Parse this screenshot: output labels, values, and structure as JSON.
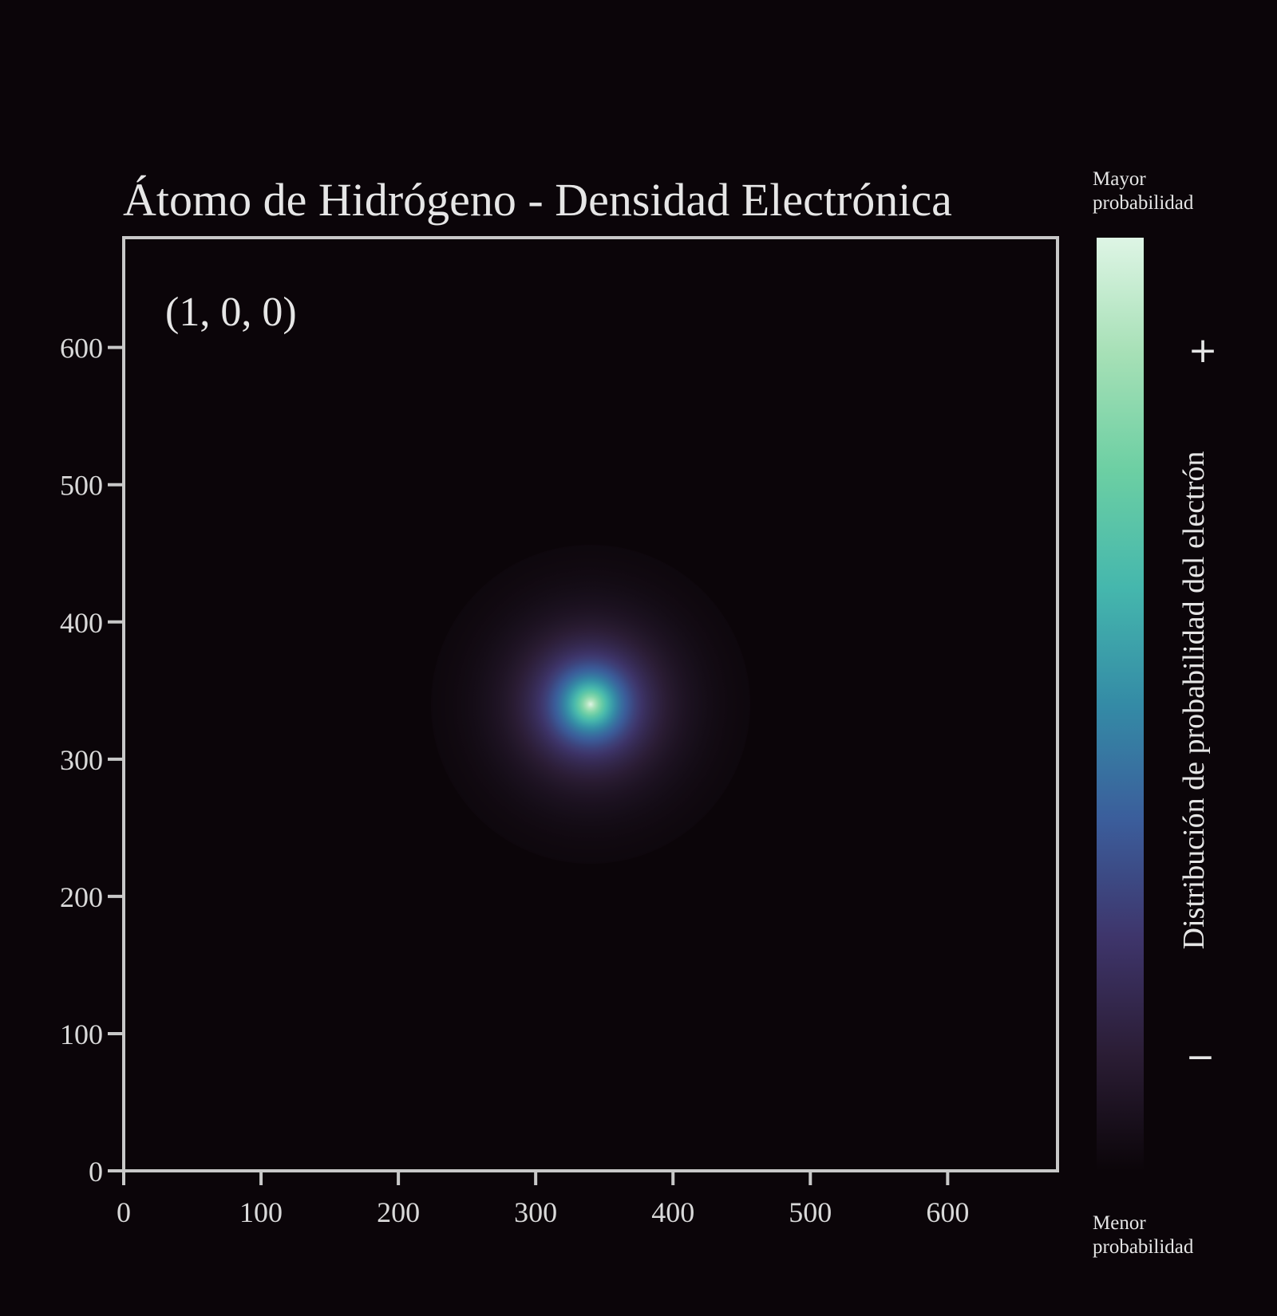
{
  "chart_data": {
    "type": "heatmap",
    "title": "Átomo de Hidrógeno - Densidad Electrónica",
    "annotation": "(1, 0, 0)",
    "quantum_numbers": [
      1,
      0,
      0
    ],
    "xlim": [
      0,
      680
    ],
    "ylim": [
      0,
      680
    ],
    "x_ticks": [
      0,
      100,
      200,
      300,
      400,
      500,
      600
    ],
    "y_ticks": [
      0,
      100,
      200,
      300,
      400,
      500,
      600
    ],
    "x_tick_labels": [
      "0",
      "100",
      "200",
      "300",
      "400",
      "500",
      "600"
    ],
    "y_tick_labels": [
      "0",
      "100",
      "200",
      "300",
      "400",
      "500",
      "600"
    ],
    "density_center": [
      340,
      340
    ],
    "density_radius_decay": 22,
    "colormap": [
      "#0b0509",
      "#2b1d35",
      "#3e356b",
      "#3b5d9b",
      "#348ba6",
      "#45b7ad",
      "#6ccfa3",
      "#a6e0b6",
      "#def5e5"
    ],
    "colorbar": {
      "label": "Distribución de probabilidad del electrón",
      "top_text_line1": "Mayor",
      "top_text_line2": "probabilidad",
      "bottom_text_line1": "Menor",
      "bottom_text_line2": "probabilidad",
      "plus_sign": "+",
      "minus_sign": "−"
    }
  }
}
